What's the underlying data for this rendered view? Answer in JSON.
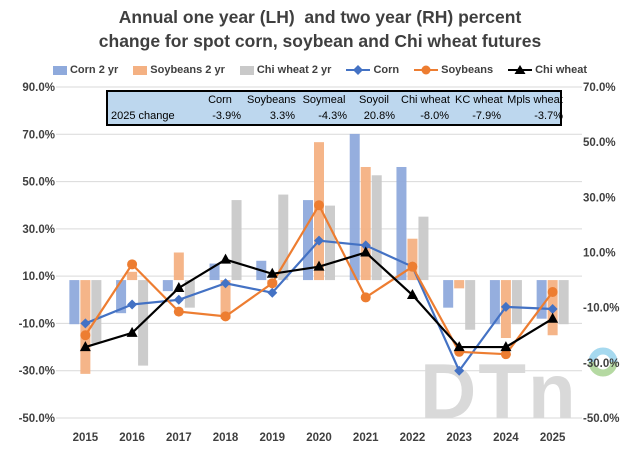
{
  "title": {
    "line1": "Annual one year (LH)  and two year (RH) percent",
    "line2": "change for spot corn, soybean and Chi wheat futures"
  },
  "legend": [
    {
      "label": "Corn 2 yr",
      "type": "bar",
      "color": "#8faadc"
    },
    {
      "label": "Soybeans 2 yr",
      "type": "bar",
      "color": "#f4b183"
    },
    {
      "label": "Chi wheat 2 yr",
      "type": "bar",
      "color": "#c9c9c9"
    },
    {
      "label": "Corn",
      "type": "line",
      "marker": "diamond",
      "color": "#4472c4"
    },
    {
      "label": "Soybeans",
      "type": "line",
      "marker": "circle",
      "color": "#ed7d31"
    },
    {
      "label": "Chi wheat",
      "type": "line",
      "marker": "triangle",
      "color": "#000000"
    }
  ],
  "overlay_table": {
    "fill": "#bdd7ee",
    "headers": [
      "",
      "Corn",
      "Soybeans",
      "Soymeal",
      "Soyoil",
      "Chi wheat",
      "KC wheat",
      "Mpls wheat"
    ],
    "row_label": "2025 change",
    "values": [
      "-3.9%",
      "3.3%",
      "-4.3%",
      "20.8%",
      "-8.0%",
      "-7.9%",
      "-3.7%"
    ]
  },
  "watermark": {
    "text": "DTn",
    "text_color": "#d9d9d9",
    "ring_color_top": "#a6d9ef",
    "ring_color_bottom": "#b5d9a2"
  },
  "chart_data": {
    "type": "combo-bar-line",
    "title": "Annual one year (LH) and two year (RH) percent change for spot corn, soybean and Chi wheat futures",
    "categories": [
      "2015",
      "2016",
      "2017",
      "2018",
      "2019",
      "2020",
      "2021",
      "2022",
      "2023",
      "2024",
      "2025"
    ],
    "grid": true,
    "gridline_color": "#d9d9d9",
    "axis_text_color": "#404040",
    "left_axis": {
      "side": "left",
      "unit": "percent",
      "min": -50,
      "max": 90,
      "step": 20,
      "ticks": [
        "90.0%",
        "70.0%",
        "50.0%",
        "30.0%",
        "10.0%",
        "-10.0%",
        "-30.0%",
        "-50.0%"
      ],
      "tick_values": [
        90,
        70,
        50,
        30,
        10,
        -10,
        -30,
        -50
      ],
      "used_by": "one-year-change lines"
    },
    "right_axis": {
      "side": "right",
      "unit": "percent",
      "min": -50,
      "max": 70,
      "step": 20,
      "ticks": [
        "70.0%",
        "50.0%",
        "30.0%",
        "10.0%",
        "-10.0%",
        "-30.0%",
        "-50.0%"
      ],
      "tick_values": [
        70,
        50,
        30,
        10,
        -10,
        -30,
        -50
      ],
      "used_by": "two-year-change bars"
    },
    "bar_series": [
      {
        "name": "Corn 2 yr",
        "axis": "right",
        "color": "#8faadc",
        "values": [
          -16,
          -12,
          -4,
          6,
          7,
          29,
          53,
          41,
          -10,
          -16,
          -14
        ]
      },
      {
        "name": "Soybeans 2 yr",
        "axis": "right",
        "color": "#f4b183",
        "values": [
          -34,
          3,
          10,
          -14,
          -2,
          50,
          41,
          15,
          -3,
          -21,
          -20
        ]
      },
      {
        "name": "Chi wheat 2 yr",
        "axis": "right",
        "color": "#c9c9c9",
        "values": [
          -23,
          -31,
          -10,
          29,
          31,
          27,
          38,
          23,
          -18,
          -16,
          -16
        ]
      }
    ],
    "line_series": [
      {
        "name": "Corn",
        "axis": "left",
        "color": "#4472c4",
        "marker": "diamond",
        "values": [
          -10,
          -2,
          0,
          7,
          3,
          25,
          23,
          14,
          -30,
          -3,
          -3.9
        ]
      },
      {
        "name": "Soybeans",
        "axis": "left",
        "color": "#ed7d31",
        "marker": "circle",
        "values": [
          -15,
          15,
          -5,
          -7,
          7,
          40,
          1,
          14,
          -22,
          -23,
          3.3
        ]
      },
      {
        "name": "Chi wheat",
        "axis": "left",
        "color": "#000000",
        "marker": "triangle",
        "values": [
          -20,
          -14,
          5,
          17,
          11,
          14,
          20,
          2,
          -20,
          -20,
          -8
        ]
      }
    ]
  }
}
